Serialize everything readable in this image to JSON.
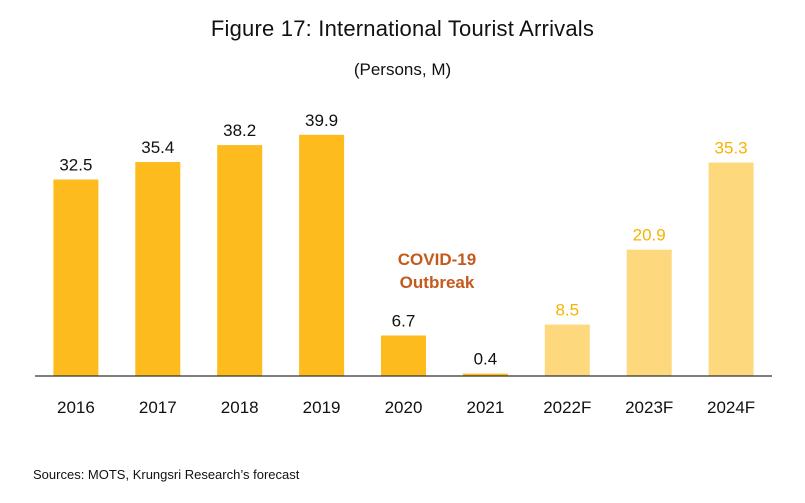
{
  "chart_data": {
    "type": "bar",
    "title": "Figure 17: International Tourist Arrivals",
    "subtitle": "(Persons, M)",
    "categories": [
      "2016",
      "2017",
      "2018",
      "2019",
      "2020",
      "2021",
      "2022F",
      "2023F",
      "2024F"
    ],
    "values": [
      32.5,
      35.4,
      38.2,
      39.9,
      6.7,
      0.4,
      8.5,
      20.9,
      35.3
    ],
    "data_labels": [
      "32.5",
      "35.4",
      "38.2",
      "39.9",
      "6.7",
      "0.4",
      "8.5",
      "20.9",
      "35.3"
    ],
    "forecast": [
      false,
      false,
      false,
      false,
      false,
      false,
      true,
      true,
      true
    ],
    "ylim": [
      0,
      44
    ],
    "grid": false,
    "legend": "none",
    "annotation": {
      "line1": "COVID-19",
      "line2": "Outbreak"
    },
    "colors": {
      "actual": "#FDBB1E",
      "forecast": "#FDD87D",
      "forecast_label": "#F5B400",
      "annotation": "#C45A1C",
      "axis": "#333333"
    }
  },
  "source": "Sources: MOTS, Krungsri Research’s forecast"
}
